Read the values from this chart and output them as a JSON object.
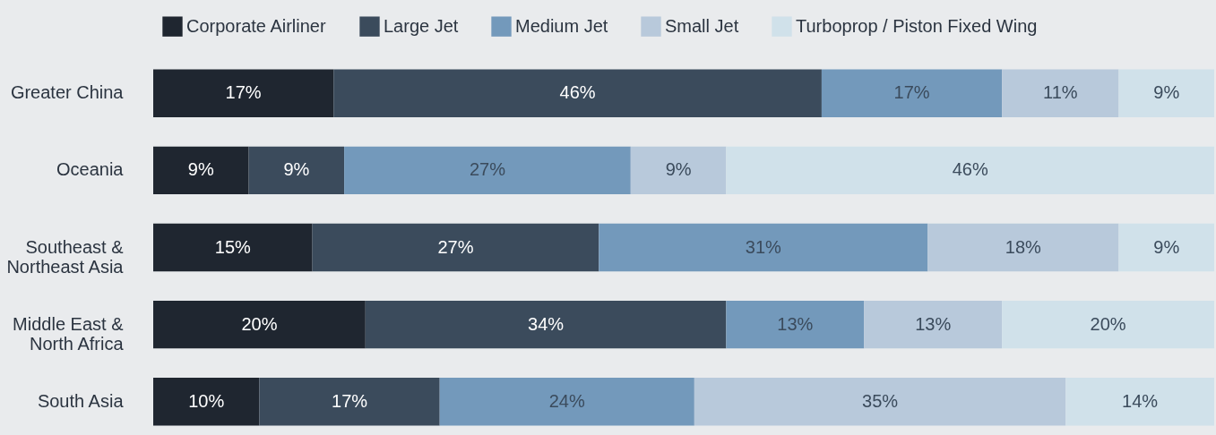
{
  "chart_data": {
    "type": "bar",
    "orientation": "horizontal",
    "stacked": true,
    "legend": "top",
    "tick_labels": "y",
    "categories": [
      "Greater China",
      "Oceania",
      "Southeast & Northeast Asia",
      "Middle East & North Africa",
      "South Asia"
    ],
    "series": [
      {
        "name": "Corporate Airliner",
        "color": "#1f2630",
        "values": [
          17,
          9,
          15,
          20,
          10
        ],
        "value_labels": [
          "17%",
          "9%",
          "15%",
          "20%",
          "10%"
        ]
      },
      {
        "name": "Large Jet",
        "color": "#3b4b5c",
        "values": [
          46,
          9,
          27,
          34,
          17
        ],
        "value_labels": [
          "46%",
          "9%",
          "27%",
          "34%",
          "17%"
        ]
      },
      {
        "name": "Medium Jet",
        "color": "#7399bb",
        "values": [
          17,
          27,
          31,
          13,
          24
        ],
        "value_labels": [
          "17%",
          "27%",
          "31%",
          "13%",
          "24%"
        ]
      },
      {
        "name": "Small Jet",
        "color": "#b8c9db",
        "values": [
          11,
          9,
          18,
          13,
          35
        ],
        "value_labels": [
          "11%",
          "9%",
          "18%",
          "13%",
          "35%"
        ]
      },
      {
        "name": "Turboprop / Piston Fixed Wing",
        "color": "#d0e1ea",
        "values": [
          9,
          46,
          9,
          20,
          14
        ],
        "value_labels": [
          "9%",
          "46%",
          "9%",
          "20%",
          "14%"
        ]
      }
    ]
  }
}
